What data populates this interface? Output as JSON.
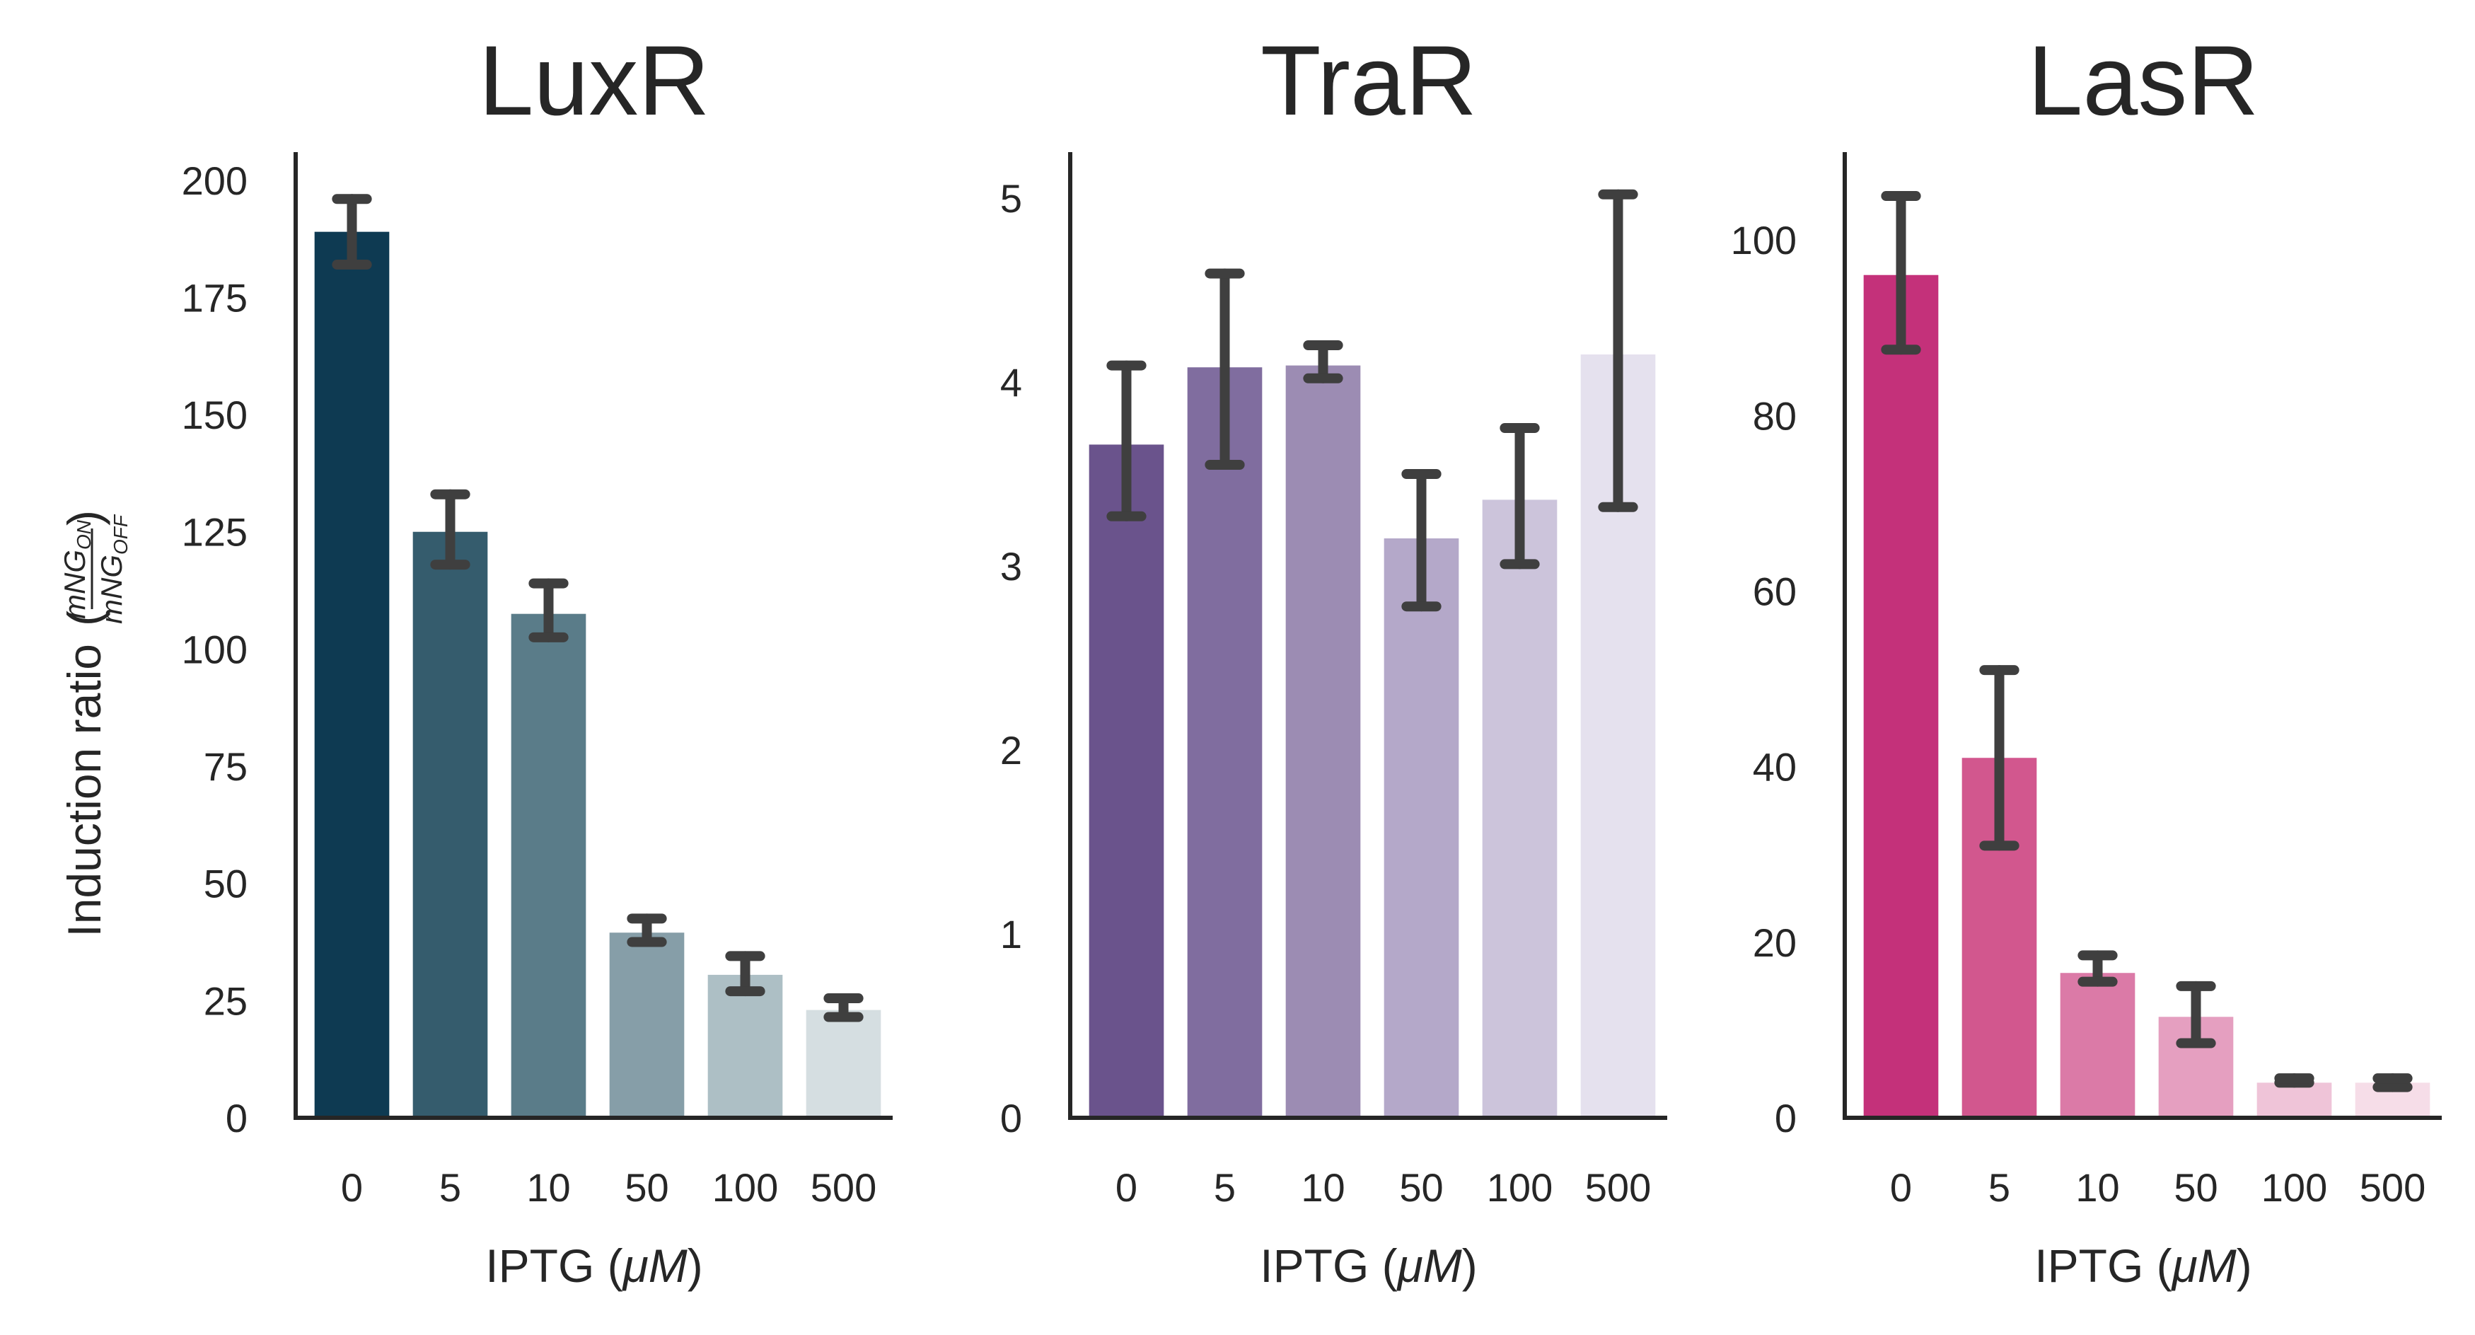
{
  "chart_data": [
    {
      "type": "bar",
      "title": "LuxR",
      "xlabel": "IPTG (μM)",
      "ylabel": "Induction ratio",
      "ylabel_fraction": {
        "numerator": "mNG",
        "numerator_sub": "ON",
        "denominator": "mNG",
        "denominator_sub": "OFF"
      },
      "categories": [
        "0",
        "5",
        "10",
        "50",
        "100",
        "500"
      ],
      "values": [
        189,
        125,
        107.5,
        39.5,
        30.5,
        23
      ],
      "error_low": [
        182,
        118,
        102.5,
        37.5,
        27,
        21.5
      ],
      "error_high": [
        196,
        133,
        114,
        42.5,
        34.5,
        25.5
      ],
      "colors": [
        "#0e3a52",
        "#355c6d",
        "#5a7c89",
        "#869ea8",
        "#adbfc5",
        "#d5dee1"
      ],
      "ylim": [
        0,
        206
      ],
      "yticks": [
        0,
        25,
        50,
        75,
        100,
        125,
        150,
        175,
        200
      ],
      "grid": false
    },
    {
      "type": "bar",
      "title": "TraR",
      "xlabel": "IPTG (μM)",
      "ylabel": "",
      "categories": [
        "0",
        "5",
        "10",
        "50",
        "100",
        "500"
      ],
      "values": [
        3.66,
        4.08,
        4.09,
        3.15,
        3.36,
        4.15
      ],
      "error_low": [
        3.27,
        3.55,
        4.02,
        2.78,
        3.01,
        3.32
      ],
      "error_high": [
        4.09,
        4.59,
        4.2,
        3.5,
        3.75,
        5.02
      ],
      "colors": [
        "#6a538c",
        "#806d9f",
        "#9c8cb3",
        "#b4a8c9",
        "#ccc4db",
        "#e5e1ee"
      ],
      "ylim": [
        0,
        5.25
      ],
      "yticks": [
        0,
        1,
        2,
        3,
        4,
        5
      ],
      "grid": false
    },
    {
      "type": "bar",
      "title": "LasR",
      "xlabel": "IPTG (μM)",
      "ylabel": "",
      "categories": [
        "0",
        "5",
        "10",
        "50",
        "100",
        "500"
      ],
      "values": [
        96,
        41,
        16.5,
        11.5,
        4,
        4
      ],
      "error_low": [
        87.5,
        31,
        15.5,
        8.5,
        4,
        3.5
      ],
      "error_high": [
        105,
        51,
        18.5,
        15,
        4.5,
        4.5
      ],
      "colors": [
        "#c4317a",
        "#d2578e",
        "#db7aa7",
        "#e59fc0",
        "#efc4d8",
        "#f6dde8"
      ],
      "ylim": [
        0,
        110
      ],
      "yticks": [
        0,
        20,
        40,
        60,
        80,
        100
      ],
      "grid": false
    }
  ]
}
